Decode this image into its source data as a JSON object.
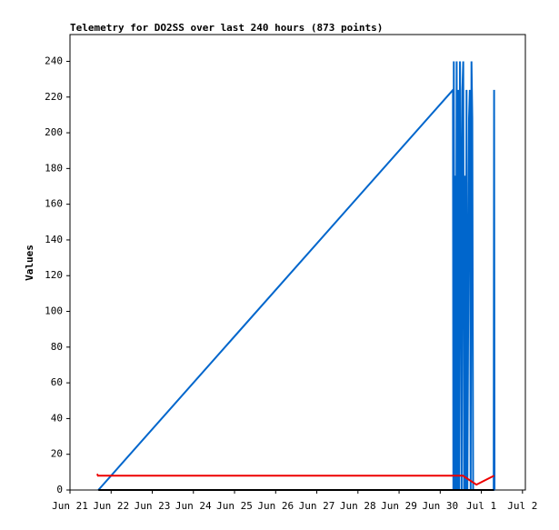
{
  "chart_data": {
    "type": "line",
    "title": "Telemetry for DO2SS over last 240 hours (873 points)",
    "y_label": "Values",
    "xlim": [
      0,
      11.07
    ],
    "xticks": [
      {
        "value": 0,
        "label": "Jun 21"
      },
      {
        "value": 1,
        "label": "Jun 22"
      },
      {
        "value": 2,
        "label": "Jun 23"
      },
      {
        "value": 3,
        "label": "Jun 24"
      },
      {
        "value": 4,
        "label": "Jun 25"
      },
      {
        "value": 5,
        "label": "Jun 26"
      },
      {
        "value": 6,
        "label": "Jun 27"
      },
      {
        "value": 7,
        "label": "Jun 28"
      },
      {
        "value": 8,
        "label": "Jun 29"
      },
      {
        "value": 9,
        "label": "Jun 30"
      },
      {
        "value": 10,
        "label": "Jul 1"
      },
      {
        "value": 11,
        "label": "Jul 2"
      }
    ],
    "ylim": [
      0,
      255
    ],
    "yticks": [
      0,
      20,
      40,
      60,
      80,
      100,
      120,
      140,
      160,
      180,
      200,
      220,
      240
    ],
    "series": [
      {
        "color": "#0066cc",
        "x": [
          0.69,
          9.31,
          9.32,
          9.33,
          9.35,
          9.36,
          9.38,
          9.4,
          9.42,
          9.44,
          9.46,
          9.48,
          9.5,
          9.52,
          9.54,
          9.56,
          9.58,
          9.6,
          9.62,
          9.64,
          9.66,
          9.68,
          9.7,
          9.72,
          9.74,
          9.76,
          9.78,
          9.8,
          10.3,
          10.31,
          10.32
        ],
        "values": [
          0,
          224,
          0,
          240,
          0,
          176,
          0,
          240,
          0,
          224,
          0,
          240,
          176,
          0,
          224,
          240,
          0,
          176,
          0,
          224,
          0,
          96,
          208,
          224,
          0,
          240,
          208,
          0,
          0,
          224,
          0
        ]
      },
      {
        "color": "#ee0000",
        "x": [
          0.66,
          0.68,
          9.55,
          9.88,
          10.31
        ],
        "values": [
          9,
          8,
          8,
          3,
          8
        ]
      },
      {
        "color": "#000000",
        "x": [
          0.69,
          10.31
        ],
        "values": [
          0,
          0
        ]
      }
    ]
  }
}
